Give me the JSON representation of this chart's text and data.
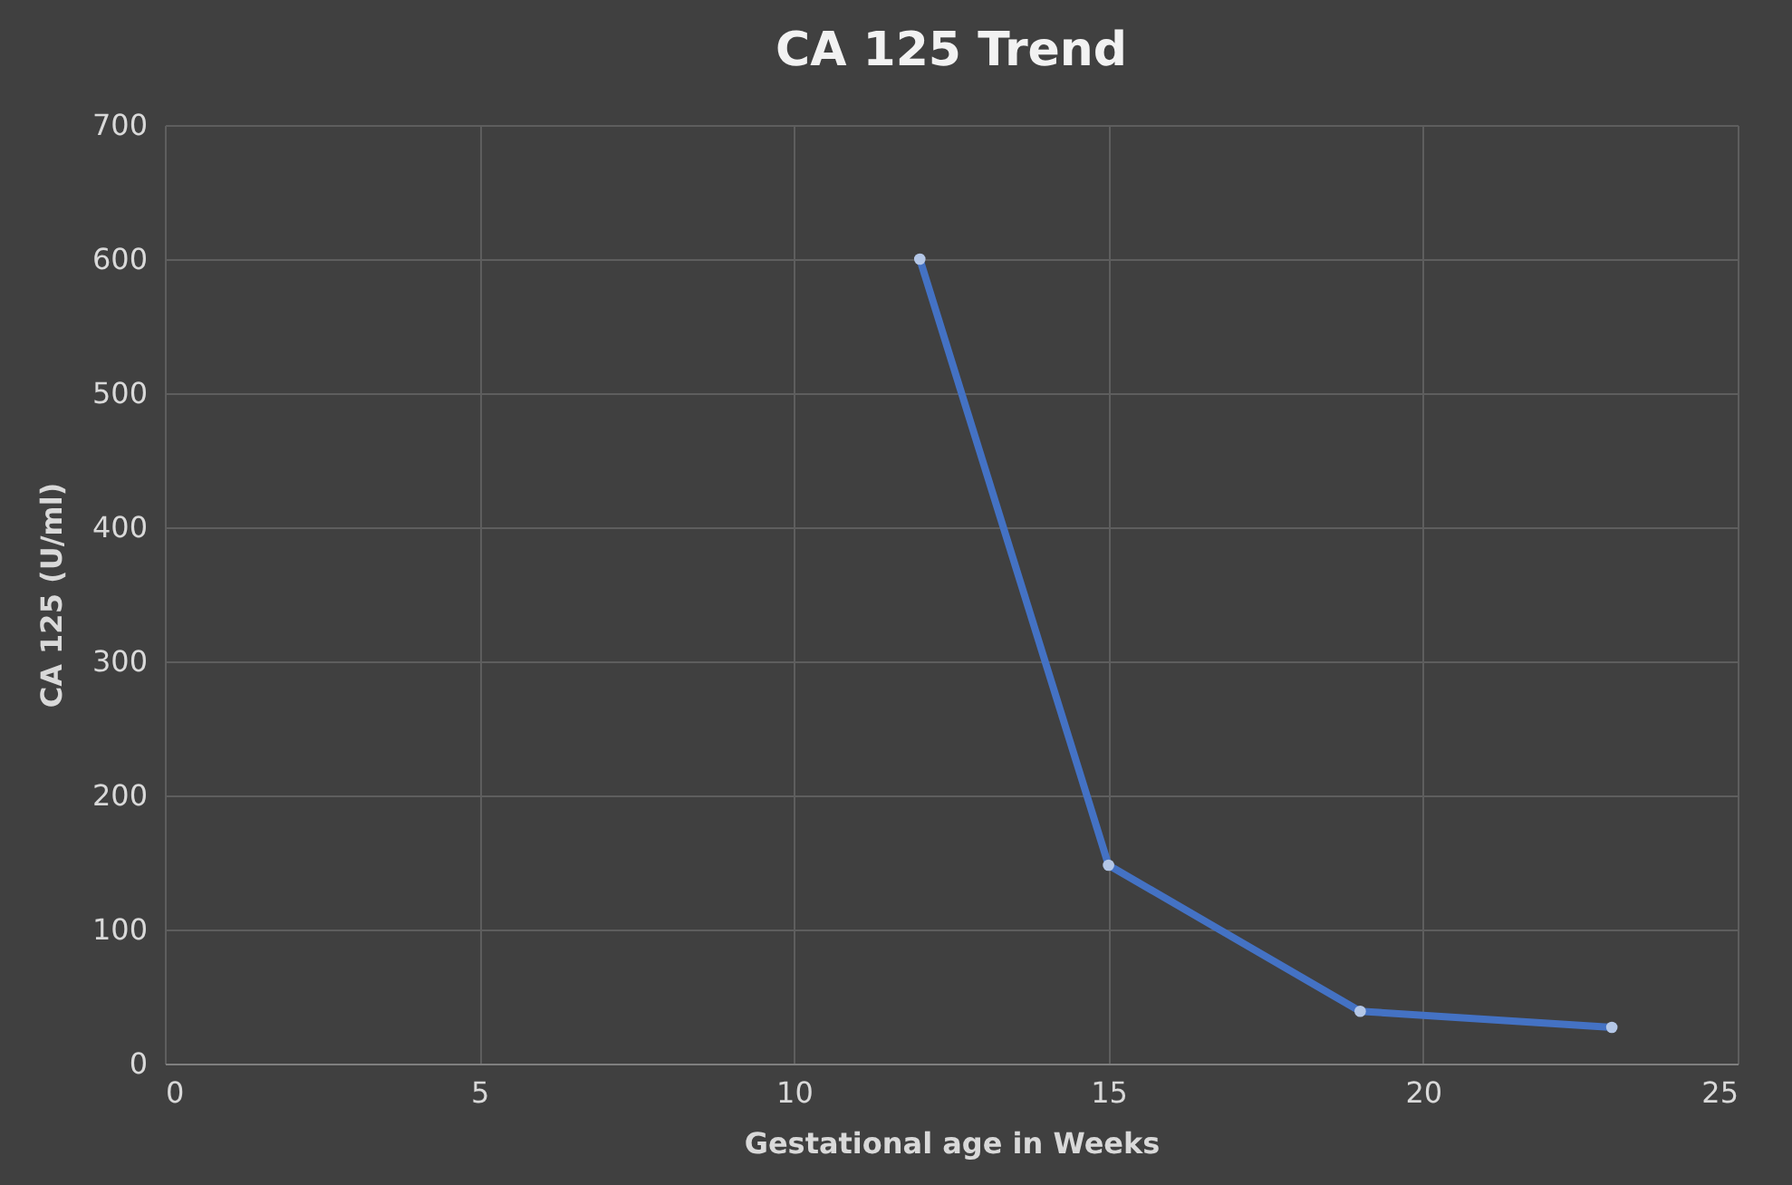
{
  "chart_data": {
    "type": "line",
    "title": "CA 125 Trend",
    "xlabel": "Gestational age in Weeks",
    "ylabel": "CA 125 (U/ml)",
    "x": [
      12,
      15,
      19,
      23
    ],
    "series": [
      {
        "color": "#4472c4",
        "values": [
          600,
          148,
          39,
          27
        ]
      }
    ],
    "xlim": [
      0,
      25
    ],
    "xticks": [
      0,
      5,
      10,
      15,
      20,
      25
    ],
    "ylim": [
      0,
      700
    ],
    "yticks": [
      0,
      100,
      200,
      300,
      400,
      500,
      600,
      700
    ],
    "grid": true,
    "marker": "circle",
    "line_style": "solid"
  }
}
